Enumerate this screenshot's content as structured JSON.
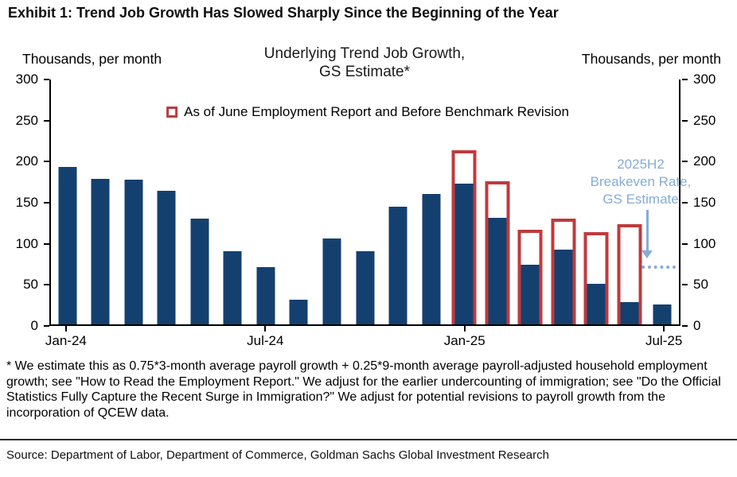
{
  "page": {
    "exhibit_title": "Exhibit 1: Trend Job Growth Has Slowed Sharply Since the Beginning of the Year",
    "footnote": "* We estimate this as 0.75*3-month average payroll growth + 0.25*9-month average payroll-adjusted household employment growth; see \"How to Read the Employment Report.\" We adjust for the earlier undercounting of immigration; see \"Do the Official Statistics Fully Capture the Recent Surge in Immigration?\" We adjust for potential revisions to payroll growth from the incorporation of QCEW data.",
    "source": "Source: Department of Labor, Department of Commerce, Goldman Sachs Global Investment Research"
  },
  "chart_data": {
    "type": "bar",
    "title": "Underlying Trend Job Growth, GS Estimate*",
    "title_lines": [
      "Underlying Trend Job Growth,",
      "GS Estimate*"
    ],
    "left_axis_label": "Thousands, per month",
    "right_axis_label": "Thousands, per month",
    "ylim": [
      0,
      300
    ],
    "yticks": [
      0,
      50,
      100,
      150,
      200,
      250,
      300
    ],
    "grid": false,
    "legend_position": "top",
    "categories": [
      "Jan-24",
      "Feb-24",
      "Mar-24",
      "Apr-24",
      "May-24",
      "Jun-24",
      "Jul-24",
      "Aug-24",
      "Sep-24",
      "Oct-24",
      "Nov-24",
      "Dec-24",
      "Jan-25",
      "Feb-25",
      "Mar-25",
      "Apr-25",
      "May-25",
      "Jun-25",
      "Jul-25"
    ],
    "x_ticks_shown": [
      "Jan-24",
      "Jul-24",
      "Jan-25",
      "Jul-25"
    ],
    "series": [
      {
        "name": "Underlying Trend Job Growth, GS Estimate*",
        "color": "#14406f",
        "values": [
          193,
          178,
          177,
          164,
          130,
          90,
          70,
          30,
          105,
          90,
          144,
          160,
          172,
          131,
          73,
          92,
          50,
          27,
          24
        ]
      },
      {
        "name": "As of June Employment Report and Before Benchmark Revision",
        "style": "outline",
        "color": "#bf3a3d",
        "values": [
          null,
          null,
          null,
          null,
          null,
          null,
          null,
          null,
          null,
          null,
          null,
          null,
          213,
          175,
          116,
          130,
          113,
          123,
          null
        ]
      }
    ],
    "legend": {
      "label": "As of June Employment Report and Before Benchmark Revision"
    },
    "annotation": {
      "lines": [
        "2025H2",
        "Breakeven Rate,",
        "GS Estimate"
      ],
      "color": "#85acd4",
      "line_value": 70
    }
  }
}
